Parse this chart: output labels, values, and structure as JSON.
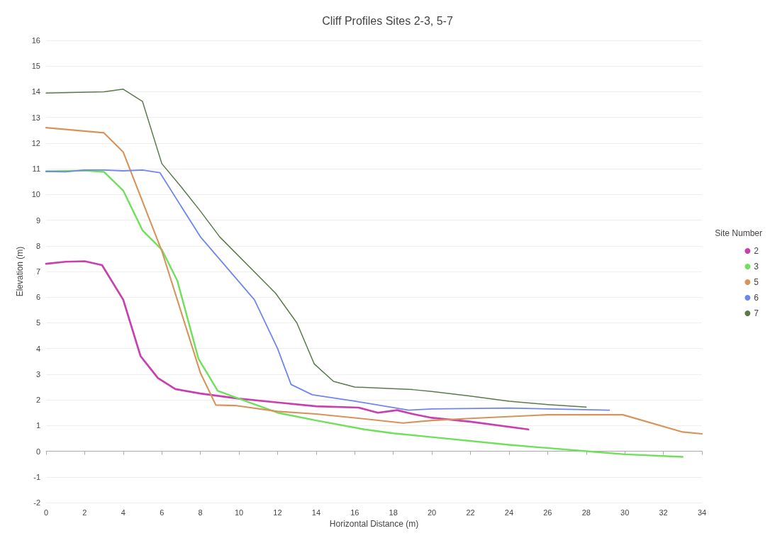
{
  "chart_data": {
    "type": "line",
    "title": "Cliff Profiles Sites 2-3, 5-7",
    "xlabel": "Horizontal Distance (m)",
    "ylabel": "Elevation (m)",
    "legend_title": "Site Number",
    "legend": "right",
    "grid": "y",
    "marker": "none",
    "line_style": "solid",
    "xlim": [
      0,
      34
    ],
    "xticks": [
      0,
      2,
      4,
      6,
      8,
      10,
      12,
      14,
      16,
      18,
      20,
      22,
      24,
      26,
      28,
      30,
      32,
      34
    ],
    "ylim": [
      -2,
      16
    ],
    "yticks": [
      -2,
      -1,
      0,
      1,
      2,
      3,
      4,
      5,
      6,
      7,
      8,
      9,
      10,
      11,
      12,
      13,
      14,
      15,
      16
    ],
    "series": [
      {
        "name": "2",
        "color": "#c83fb0",
        "x": [
          0,
          1,
          2,
          2.9,
          4,
          4.9,
          5.8,
          6.7,
          8,
          10,
          12,
          14,
          16.2,
          17.2,
          18.2,
          19,
          20,
          22,
          25
        ],
        "values": [
          7.3,
          7.38,
          7.4,
          7.25,
          5.9,
          3.7,
          2.85,
          2.42,
          2.25,
          2.05,
          1.9,
          1.75,
          1.7,
          1.5,
          1.6,
          1.45,
          1.3,
          1.15,
          0.85
        ]
      },
      {
        "name": "3",
        "color": "#6ee05a",
        "x": [
          0,
          2,
          3,
          4,
          5,
          6,
          6.8,
          7.9,
          8.9,
          10,
          12,
          14,
          16.5,
          18,
          20,
          24,
          28,
          30,
          33
        ],
        "values": [
          10.9,
          10.93,
          10.88,
          10.15,
          8.6,
          7.85,
          6.65,
          3.6,
          2.35,
          2.05,
          1.5,
          1.2,
          0.85,
          0.7,
          0.55,
          0.25,
          0,
          -0.12,
          -0.22
        ]
      },
      {
        "name": "5",
        "color": "#d8935a",
        "x": [
          0,
          3,
          4,
          6,
          8,
          8.8,
          9.8,
          12,
          14,
          16,
          18.5,
          20,
          22,
          26,
          29.9,
          33,
          34
        ],
        "values": [
          12.6,
          12.4,
          11.65,
          7.8,
          3.05,
          1.8,
          1.78,
          1.55,
          1.45,
          1.3,
          1.1,
          1.2,
          1.28,
          1.42,
          1.42,
          0.75,
          0.68
        ]
      },
      {
        "name": "6",
        "color": "#6f86f0",
        "x": [
          0,
          1,
          2,
          3,
          4,
          5,
          5.9,
          8,
          10.8,
          12,
          12.7,
          13.8,
          16,
          18.8,
          20,
          24,
          29.2
        ],
        "values": [
          10.9,
          10.88,
          10.95,
          10.95,
          10.92,
          10.95,
          10.85,
          8.35,
          5.9,
          4,
          2.6,
          2.2,
          1.95,
          1.6,
          1.65,
          1.68,
          1.6
        ]
      },
      {
        "name": "7",
        "color": "#5a7a4a",
        "x": [
          0,
          3,
          4,
          5,
          6,
          7,
          8,
          9,
          11.9,
          13,
          13.9,
          14.9,
          16,
          19,
          20,
          22,
          24,
          26,
          28
        ],
        "values": [
          13.95,
          14.0,
          14.1,
          13.62,
          11.2,
          10.3,
          9.35,
          8.35,
          6.15,
          5.0,
          3.4,
          2.72,
          2.5,
          2.4,
          2.33,
          2.15,
          1.95,
          1.82,
          1.72
        ]
      }
    ]
  }
}
